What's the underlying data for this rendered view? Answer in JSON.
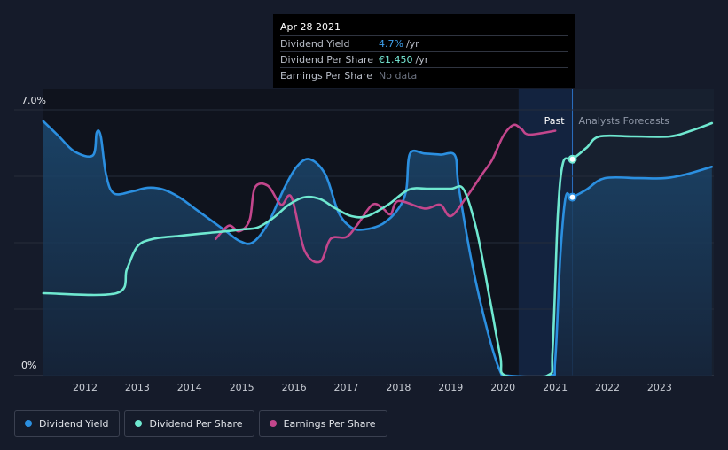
{
  "tooltip": {
    "date": "Apr 28 2021",
    "rows": [
      {
        "label": "Dividend Yield",
        "value": "4.7%",
        "unit": "/yr"
      },
      {
        "label": "Dividend Per Share",
        "value": "€1.450",
        "unit": "/yr"
      },
      {
        "label": "Earnings Per Share",
        "value": "No data",
        "unit": ""
      }
    ]
  },
  "labels": {
    "past": "Past",
    "forecast": "Analysts Forecasts"
  },
  "legend": [
    {
      "label": "Dividend Yield",
      "color": "#2b8fe0"
    },
    {
      "label": "Dividend Per Share",
      "color": "#6fe8d0"
    },
    {
      "label": "Earnings Per Share",
      "color": "#c3468c"
    }
  ],
  "chart_data": {
    "type": "line",
    "y_tick_labels": [
      "7.0%",
      "0%"
    ],
    "ylim": [
      0,
      7.0
    ],
    "xlim": [
      2011.2,
      2024.0
    ],
    "x_ticks": [
      "2012",
      "2013",
      "2014",
      "2015",
      "2016",
      "2017",
      "2018",
      "2019",
      "2020",
      "2021",
      "2022",
      "2023"
    ],
    "past_region": [
      2020.3,
      2021.33
    ],
    "forecast_start": 2021.33,
    "grid": true,
    "legend_position": "bottom-left",
    "series": [
      {
        "name": "Dividend Yield",
        "color": "#2b8fe0",
        "fill": true,
        "points": [
          [
            2011.2,
            6.7
          ],
          [
            2011.5,
            6.3
          ],
          [
            2011.8,
            5.9
          ],
          [
            2012.15,
            5.8
          ],
          [
            2012.22,
            6.4
          ],
          [
            2012.3,
            6.3
          ],
          [
            2012.4,
            5.3
          ],
          [
            2012.55,
            4.8
          ],
          [
            2012.9,
            4.85
          ],
          [
            2013.2,
            4.95
          ],
          [
            2013.5,
            4.9
          ],
          [
            2013.8,
            4.7
          ],
          [
            2014.1,
            4.4
          ],
          [
            2014.4,
            4.1
          ],
          [
            2014.7,
            3.8
          ],
          [
            2014.95,
            3.55
          ],
          [
            2015.2,
            3.5
          ],
          [
            2015.5,
            4.0
          ],
          [
            2015.8,
            4.9
          ],
          [
            2016.05,
            5.5
          ],
          [
            2016.3,
            5.7
          ],
          [
            2016.6,
            5.3
          ],
          [
            2016.85,
            4.3
          ],
          [
            2017.1,
            3.9
          ],
          [
            2017.35,
            3.85
          ],
          [
            2017.7,
            4.0
          ],
          [
            2018.0,
            4.4
          ],
          [
            2018.15,
            4.9
          ],
          [
            2018.22,
            5.85
          ],
          [
            2018.5,
            5.85
          ],
          [
            2018.8,
            5.82
          ],
          [
            2019.08,
            5.8
          ],
          [
            2019.15,
            5.0
          ],
          [
            2019.4,
            3.0
          ],
          [
            2019.7,
            1.2
          ],
          [
            2019.95,
            0.1
          ],
          [
            2020.1,
            0.0
          ],
          [
            2020.9,
            0.0
          ],
          [
            2021.0,
            0.4
          ],
          [
            2021.1,
            3.2
          ],
          [
            2021.2,
            4.7
          ],
          [
            2021.33,
            4.7
          ],
          [
            2021.6,
            4.9
          ],
          [
            2021.95,
            5.2
          ],
          [
            2022.6,
            5.2
          ],
          [
            2023.1,
            5.2
          ],
          [
            2023.5,
            5.3
          ],
          [
            2024.0,
            5.5
          ]
        ],
        "highlight": [
          2021.33,
          4.7
        ]
      },
      {
        "name": "Dividend Per Share",
        "color": "#6fe8d0",
        "fill": false,
        "points": [
          [
            2011.2,
            2.17
          ],
          [
            2012.6,
            2.17
          ],
          [
            2012.8,
            2.8
          ],
          [
            2013.0,
            3.4
          ],
          [
            2013.3,
            3.6
          ],
          [
            2013.8,
            3.68
          ],
          [
            2014.3,
            3.75
          ],
          [
            2014.7,
            3.8
          ],
          [
            2015.0,
            3.85
          ],
          [
            2015.3,
            3.9
          ],
          [
            2015.6,
            4.15
          ],
          [
            2015.9,
            4.5
          ],
          [
            2016.2,
            4.7
          ],
          [
            2016.5,
            4.65
          ],
          [
            2016.8,
            4.4
          ],
          [
            2017.1,
            4.2
          ],
          [
            2017.4,
            4.2
          ],
          [
            2017.8,
            4.5
          ],
          [
            2018.2,
            4.9
          ],
          [
            2018.6,
            4.92
          ],
          [
            2019.0,
            4.92
          ],
          [
            2019.25,
            4.9
          ],
          [
            2019.5,
            3.8
          ],
          [
            2019.75,
            2.0
          ],
          [
            2019.95,
            0.5
          ],
          [
            2020.05,
            0.0
          ],
          [
            2020.85,
            0.0
          ],
          [
            2020.95,
            0.7
          ],
          [
            2021.05,
            4.2
          ],
          [
            2021.15,
            5.6
          ],
          [
            2021.33,
            5.7
          ],
          [
            2021.6,
            6.0
          ],
          [
            2021.85,
            6.3
          ],
          [
            2022.5,
            6.3
          ],
          [
            2023.2,
            6.3
          ],
          [
            2023.6,
            6.45
          ],
          [
            2024.0,
            6.65
          ]
        ],
        "highlight": [
          2021.33,
          5.7
        ]
      },
      {
        "name": "Earnings Per Share",
        "color": "#c3468c",
        "fill": false,
        "points": [
          [
            2014.5,
            3.6
          ],
          [
            2014.75,
            3.95
          ],
          [
            2014.95,
            3.8
          ],
          [
            2015.15,
            4.1
          ],
          [
            2015.25,
            4.95
          ],
          [
            2015.5,
            5.0
          ],
          [
            2015.75,
            4.5
          ],
          [
            2015.95,
            4.7
          ],
          [
            2016.2,
            3.3
          ],
          [
            2016.5,
            3.0
          ],
          [
            2016.7,
            3.6
          ],
          [
            2017.0,
            3.65
          ],
          [
            2017.2,
            3.95
          ],
          [
            2017.5,
            4.5
          ],
          [
            2017.7,
            4.4
          ],
          [
            2017.85,
            4.25
          ],
          [
            2018.0,
            4.6
          ],
          [
            2018.5,
            4.4
          ],
          [
            2018.8,
            4.5
          ],
          [
            2019.0,
            4.2
          ],
          [
            2019.3,
            4.7
          ],
          [
            2019.6,
            5.3
          ],
          [
            2019.8,
            5.7
          ],
          [
            2020.0,
            6.3
          ],
          [
            2020.2,
            6.6
          ],
          [
            2020.35,
            6.5
          ],
          [
            2020.5,
            6.35
          ],
          [
            2021.0,
            6.45
          ]
        ]
      }
    ]
  }
}
